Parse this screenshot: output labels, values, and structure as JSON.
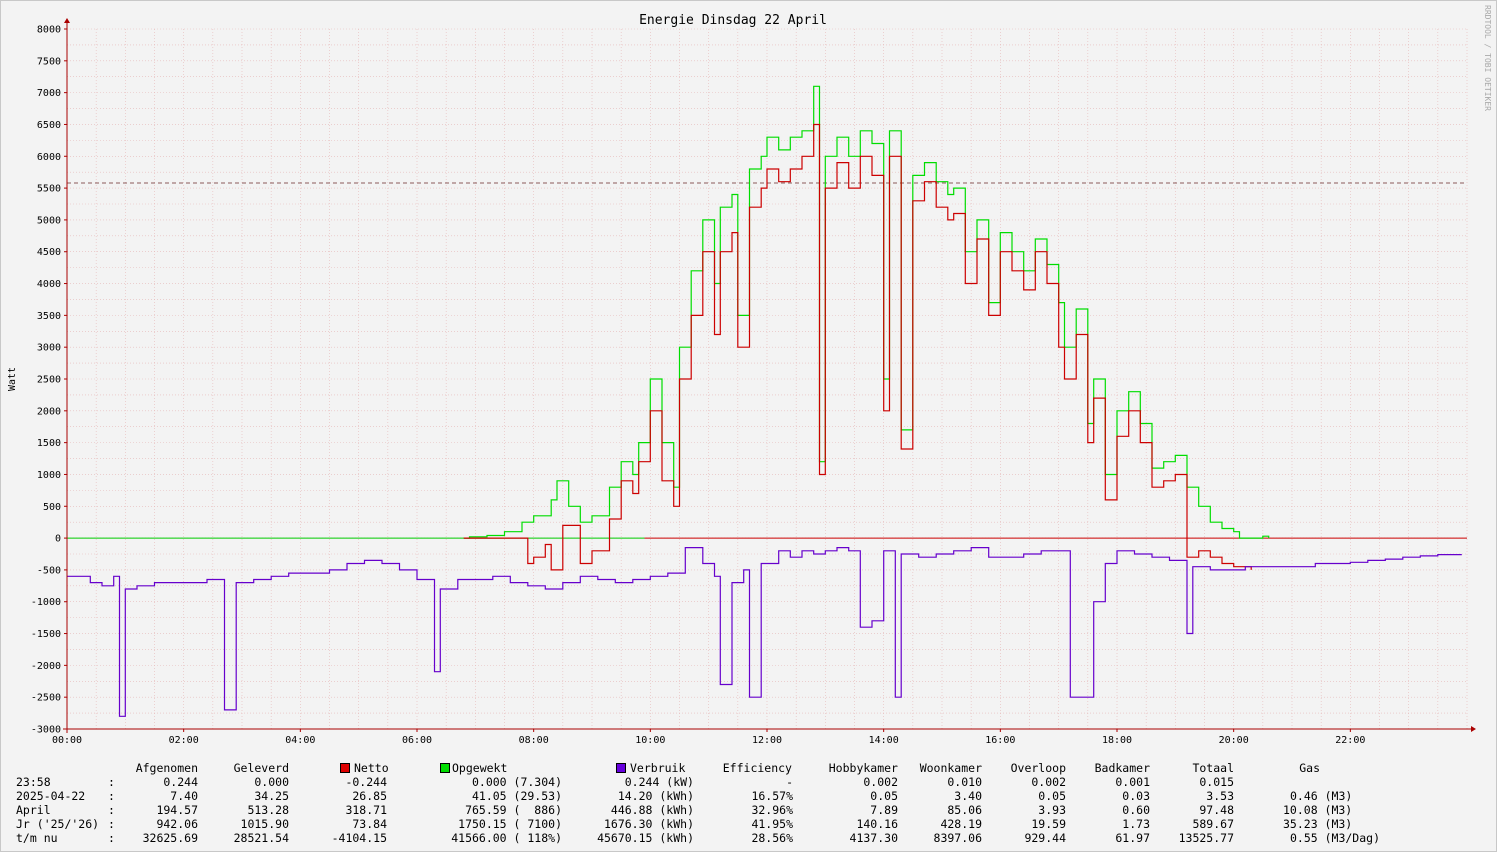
{
  "chart_data": {
    "type": "line",
    "title": "Energie Dinsdag   22 April",
    "ylabel": "Watt",
    "xlabel": "",
    "vertical_label": "RRDTOOL / TOBI OETIKER",
    "ylim": [
      -3000,
      8000
    ],
    "xlim_hours": [
      0,
      24
    ],
    "y_ticks": [
      "8000",
      "7500",
      "7000",
      "6500",
      "6000",
      "5500",
      "5000",
      "4500",
      "4000",
      "3500",
      "3000",
      "2500",
      "2000",
      "1500",
      "1000",
      "500",
      "0",
      "-500",
      "-1000",
      "-1500",
      "-2000",
      "-2500",
      "-3000"
    ],
    "x_ticks": [
      "00:00",
      "02:00",
      "04:00",
      "06:00",
      "08:00",
      "10:00",
      "12:00",
      "14:00",
      "16:00",
      "18:00",
      "20:00",
      "22:00"
    ],
    "reference_line": {
      "value": 5580,
      "style": "dashed",
      "color": "#8b5a5a"
    },
    "grid": true,
    "colors": {
      "netto": "#cc0000",
      "opgewekt": "#00dd00",
      "verbruik": "#6600cc",
      "zero_line_left": "#00cc00",
      "zero_line_right": "#cc0000",
      "grid_minor": "#e6b8b8",
      "axis": "#aa0000"
    },
    "series": [
      {
        "name": "Opgewekt",
        "color": "#00dd00",
        "points": [
          [
            6.8,
            0
          ],
          [
            6.9,
            20
          ],
          [
            7.2,
            40
          ],
          [
            7.5,
            100
          ],
          [
            7.8,
            250
          ],
          [
            8.0,
            350
          ],
          [
            8.3,
            600
          ],
          [
            8.4,
            900
          ],
          [
            8.6,
            500
          ],
          [
            8.8,
            250
          ],
          [
            9.0,
            350
          ],
          [
            9.3,
            800
          ],
          [
            9.5,
            1200
          ],
          [
            9.7,
            1000
          ],
          [
            9.8,
            1500
          ],
          [
            10.0,
            2500
          ],
          [
            10.2,
            1500
          ],
          [
            10.4,
            800
          ],
          [
            10.5,
            3000
          ],
          [
            10.7,
            4200
          ],
          [
            10.9,
            5000
          ],
          [
            11.1,
            4000
          ],
          [
            11.2,
            5200
          ],
          [
            11.4,
            5400
          ],
          [
            11.5,
            3500
          ],
          [
            11.7,
            5800
          ],
          [
            11.9,
            6000
          ],
          [
            12.0,
            6300
          ],
          [
            12.2,
            6100
          ],
          [
            12.4,
            6300
          ],
          [
            12.6,
            6400
          ],
          [
            12.8,
            7100
          ],
          [
            12.9,
            1200
          ],
          [
            13.0,
            6000
          ],
          [
            13.2,
            6300
          ],
          [
            13.4,
            6000
          ],
          [
            13.6,
            6400
          ],
          [
            13.8,
            6200
          ],
          [
            14.0,
            2500
          ],
          [
            14.1,
            6400
          ],
          [
            14.3,
            1700
          ],
          [
            14.5,
            5700
          ],
          [
            14.7,
            5900
          ],
          [
            14.9,
            5600
          ],
          [
            15.1,
            5400
          ],
          [
            15.2,
            5500
          ],
          [
            15.4,
            4500
          ],
          [
            15.6,
            5000
          ],
          [
            15.8,
            3700
          ],
          [
            16.0,
            4800
          ],
          [
            16.2,
            4500
          ],
          [
            16.4,
            4200
          ],
          [
            16.6,
            4700
          ],
          [
            16.8,
            4300
          ],
          [
            17.0,
            3700
          ],
          [
            17.1,
            3000
          ],
          [
            17.3,
            3600
          ],
          [
            17.5,
            1800
          ],
          [
            17.6,
            2500
          ],
          [
            17.8,
            1000
          ],
          [
            18.0,
            2000
          ],
          [
            18.2,
            2300
          ],
          [
            18.4,
            1800
          ],
          [
            18.6,
            1100
          ],
          [
            18.8,
            1200
          ],
          [
            19.0,
            1300
          ],
          [
            19.2,
            800
          ],
          [
            19.4,
            500
          ],
          [
            19.6,
            250
          ],
          [
            19.8,
            150
          ],
          [
            20.0,
            100
          ],
          [
            20.1,
            0
          ],
          [
            20.5,
            30
          ],
          [
            20.6,
            0
          ]
        ]
      },
      {
        "name": "Netto",
        "color": "#cc0000",
        "points": [
          [
            6.8,
            0
          ],
          [
            7.5,
            0
          ],
          [
            7.9,
            -400
          ],
          [
            8.0,
            -300
          ],
          [
            8.2,
            -100
          ],
          [
            8.3,
            -500
          ],
          [
            8.5,
            200
          ],
          [
            8.8,
            -400
          ],
          [
            9.0,
            -200
          ],
          [
            9.3,
            300
          ],
          [
            9.5,
            900
          ],
          [
            9.7,
            700
          ],
          [
            9.8,
            1200
          ],
          [
            10.0,
            2000
          ],
          [
            10.2,
            900
          ],
          [
            10.4,
            500
          ],
          [
            10.5,
            2500
          ],
          [
            10.7,
            3500
          ],
          [
            10.9,
            4500
          ],
          [
            11.1,
            3200
          ],
          [
            11.2,
            4500
          ],
          [
            11.4,
            4800
          ],
          [
            11.5,
            3000
          ],
          [
            11.7,
            5200
          ],
          [
            11.9,
            5500
          ],
          [
            12.0,
            5800
          ],
          [
            12.2,
            5600
          ],
          [
            12.4,
            5800
          ],
          [
            12.6,
            6000
          ],
          [
            12.8,
            6500
          ],
          [
            12.9,
            1000
          ],
          [
            13.0,
            5500
          ],
          [
            13.2,
            5900
          ],
          [
            13.4,
            5500
          ],
          [
            13.6,
            6000
          ],
          [
            13.8,
            5700
          ],
          [
            14.0,
            2000
          ],
          [
            14.1,
            6000
          ],
          [
            14.3,
            1400
          ],
          [
            14.5,
            5300
          ],
          [
            14.7,
            5600
          ],
          [
            14.9,
            5200
          ],
          [
            15.1,
            5000
          ],
          [
            15.2,
            5100
          ],
          [
            15.4,
            4000
          ],
          [
            15.6,
            4700
          ],
          [
            15.8,
            3500
          ],
          [
            16.0,
            4500
          ],
          [
            16.2,
            4200
          ],
          [
            16.4,
            3900
          ],
          [
            16.6,
            4500
          ],
          [
            16.8,
            4000
          ],
          [
            17.0,
            3000
          ],
          [
            17.1,
            2500
          ],
          [
            17.3,
            3200
          ],
          [
            17.5,
            1500
          ],
          [
            17.6,
            2200
          ],
          [
            17.8,
            600
          ],
          [
            18.0,
            1600
          ],
          [
            18.2,
            2000
          ],
          [
            18.4,
            1500
          ],
          [
            18.6,
            800
          ],
          [
            18.8,
            900
          ],
          [
            19.0,
            1000
          ],
          [
            19.2,
            -300
          ],
          [
            19.4,
            -200
          ],
          [
            19.6,
            -300
          ],
          [
            19.8,
            -400
          ],
          [
            20.0,
            -450
          ],
          [
            20.3,
            -500
          ]
        ]
      },
      {
        "name": "Verbruik",
        "color": "#6600cc",
        "points": [
          [
            0.0,
            -600
          ],
          [
            0.2,
            -600
          ],
          [
            0.4,
            -700
          ],
          [
            0.6,
            -750
          ],
          [
            0.8,
            -600
          ],
          [
            0.9,
            -2800
          ],
          [
            1.0,
            -800
          ],
          [
            1.2,
            -750
          ],
          [
            1.5,
            -700
          ],
          [
            1.8,
            -700
          ],
          [
            2.1,
            -700
          ],
          [
            2.4,
            -650
          ],
          [
            2.7,
            -2700
          ],
          [
            2.9,
            -700
          ],
          [
            3.2,
            -650
          ],
          [
            3.5,
            -600
          ],
          [
            3.8,
            -550
          ],
          [
            4.2,
            -550
          ],
          [
            4.5,
            -500
          ],
          [
            4.8,
            -400
          ],
          [
            5.1,
            -350
          ],
          [
            5.4,
            -400
          ],
          [
            5.7,
            -500
          ],
          [
            6.0,
            -650
          ],
          [
            6.3,
            -2100
          ],
          [
            6.4,
            -800
          ],
          [
            6.7,
            -650
          ],
          [
            7.0,
            -650
          ],
          [
            7.3,
            -600
          ],
          [
            7.6,
            -700
          ],
          [
            7.9,
            -750
          ],
          [
            8.2,
            -800
          ],
          [
            8.5,
            -700
          ],
          [
            8.8,
            -600
          ],
          [
            9.1,
            -650
          ],
          [
            9.4,
            -700
          ],
          [
            9.7,
            -650
          ],
          [
            10.0,
            -600
          ],
          [
            10.3,
            -550
          ],
          [
            10.6,
            -150
          ],
          [
            10.9,
            -400
          ],
          [
            11.1,
            -600
          ],
          [
            11.2,
            -2300
          ],
          [
            11.4,
            -700
          ],
          [
            11.6,
            -500
          ],
          [
            11.7,
            -2500
          ],
          [
            11.9,
            -400
          ],
          [
            12.2,
            -200
          ],
          [
            12.4,
            -300
          ],
          [
            12.6,
            -200
          ],
          [
            12.8,
            -250
          ],
          [
            13.0,
            -200
          ],
          [
            13.2,
            -150
          ],
          [
            13.4,
            -200
          ],
          [
            13.6,
            -1400
          ],
          [
            13.8,
            -1300
          ],
          [
            14.0,
            -200
          ],
          [
            14.2,
            -2500
          ],
          [
            14.3,
            -250
          ],
          [
            14.6,
            -300
          ],
          [
            14.9,
            -250
          ],
          [
            15.2,
            -200
          ],
          [
            15.5,
            -150
          ],
          [
            15.8,
            -300
          ],
          [
            16.1,
            -300
          ],
          [
            16.4,
            -250
          ],
          [
            16.7,
            -200
          ],
          [
            17.0,
            -200
          ],
          [
            17.2,
            -2500
          ],
          [
            17.4,
            -2500
          ],
          [
            17.6,
            -1000
          ],
          [
            17.8,
            -400
          ],
          [
            18.0,
            -200
          ],
          [
            18.3,
            -250
          ],
          [
            18.6,
            -300
          ],
          [
            18.9,
            -350
          ],
          [
            19.2,
            -1500
          ],
          [
            19.3,
            -450
          ],
          [
            19.6,
            -500
          ],
          [
            19.9,
            -500
          ],
          [
            20.2,
            -450
          ],
          [
            20.5,
            -450
          ],
          [
            20.8,
            -450
          ],
          [
            21.1,
            -450
          ],
          [
            21.4,
            -400
          ],
          [
            21.7,
            -400
          ],
          [
            22.0,
            -380
          ],
          [
            22.3,
            -350
          ],
          [
            22.6,
            -330
          ],
          [
            22.9,
            -300
          ],
          [
            23.2,
            -280
          ],
          [
            23.5,
            -260
          ],
          [
            23.9,
            -250
          ]
        ]
      }
    ]
  },
  "legend": {
    "headers": [
      "Afgenomen",
      "Geleverd",
      "Netto",
      "Opgewekt",
      "Verbruik",
      "Efficiency",
      "Hobbykamer",
      "Woonkamer",
      "Overloop",
      "Badkamer",
      "Totaal",
      "Gas"
    ],
    "swatch_colors": {
      "netto": "#dd0000",
      "opgewekt": "#00dd00",
      "verbruik": "#6600dd"
    },
    "rows": [
      [
        "23:58",
        ":",
        "0.244",
        "0.000",
        "-0.244",
        "0.000 (7.304)",
        "0.244 (kW)",
        "-",
        "0.002",
        "0.010",
        "0.002",
        "0.001",
        "0.015",
        ""
      ],
      [
        "2025-04-22",
        ":",
        "7.40",
        "34.25",
        "26.85",
        "41.05 (29.53)",
        "14.20 (kWh)",
        "16.57%",
        "0.05",
        "3.40",
        "0.05",
        "0.03",
        "3.53",
        "0.46 (M3)"
      ],
      [
        "April",
        ":",
        "194.57",
        "513.28",
        "318.71",
        "765.59 (  886)",
        "446.88 (kWh)",
        "32.96%",
        "7.89",
        "85.06",
        "3.93",
        "0.60",
        "97.48",
        "10.08 (M3)"
      ],
      [
        "Jr ('25/'26)",
        ":",
        "942.06",
        "1015.90",
        "73.84",
        "1750.15 ( 7100)",
        "1676.30 (kWh)",
        "41.95%",
        "140.16",
        "428.19",
        "19.59",
        "1.73",
        "589.67",
        "35.23 (M3)"
      ],
      [
        "t/m nu",
        ":",
        "32625.69",
        "28521.54",
        "-4104.15",
        "41566.00 ( 118%)",
        "45670.15 (kWh)",
        "28.56%",
        "4137.30",
        "8397.06",
        "929.44",
        "61.97",
        "13525.77",
        "0.55 (M3/Dag)"
      ]
    ]
  }
}
